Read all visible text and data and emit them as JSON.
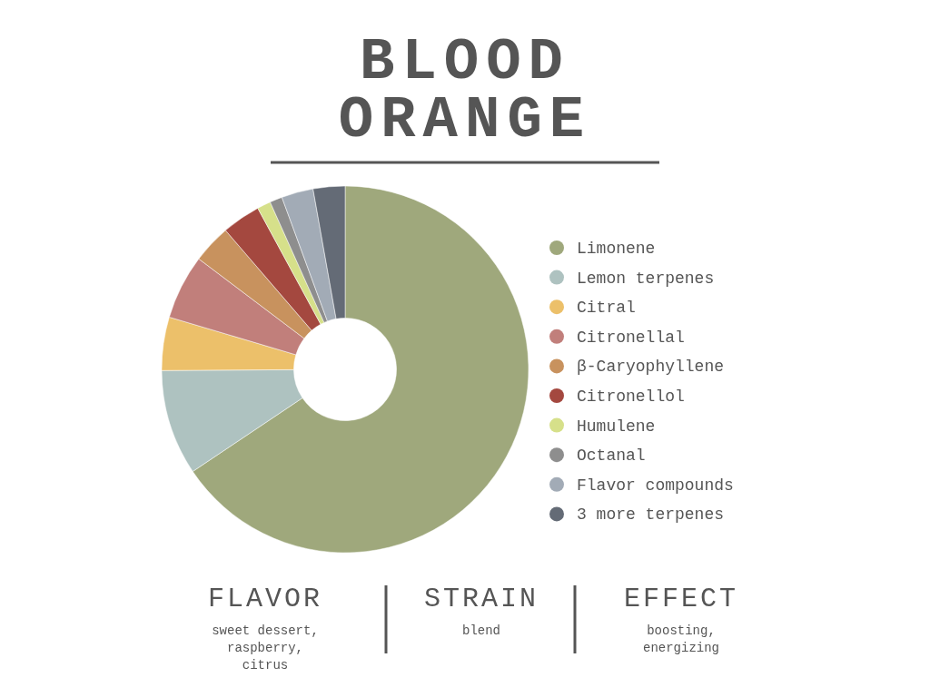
{
  "chart_data": {
    "type": "donut",
    "title": "BLOOD ORANGE",
    "categories": [
      "Limonene",
      "Lemon terpenes",
      "Citral",
      "Citronellal",
      "β-Caryophyllene",
      "Citronellol",
      "Humulene",
      "Octanal",
      "Flavor compounds",
      "3 more terpenes"
    ],
    "values": [
      65.6,
      9.3,
      4.7,
      5.7,
      3.4,
      3.4,
      1.2,
      1.1,
      2.8,
      2.8
    ],
    "colors": [
      "#9fa87c",
      "#aec2c0",
      "#ecc06a",
      "#c17f7b",
      "#c8925e",
      "#a4483f",
      "#d6e08a",
      "#8e8e8e",
      "#a2abb6",
      "#646b76"
    ],
    "legend": "right",
    "annotations": [
      "FLAVOR",
      "sweet dessert, raspberry, citrus",
      "STRAIN",
      "blend",
      "EFFECT",
      "boosting, energizing"
    ]
  }
}
